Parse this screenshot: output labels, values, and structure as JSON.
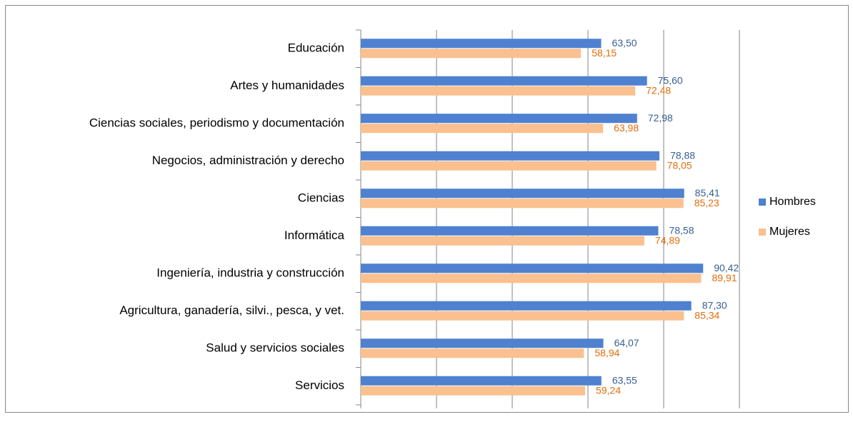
{
  "chart_data": {
    "type": "barh",
    "categories": [
      "Educación",
      "Artes y humanidades",
      "Ciencias sociales, periodismo y documentación",
      "Negocios, administración y derecho",
      "Ciencias",
      "Informática",
      "Ingeniería, industria y construcción",
      "Agricultura, ganadería,  silvi., pesca, y vet.",
      "Salud y servicios sociales",
      "Servicios"
    ],
    "series": [
      {
        "name": "Hombres",
        "color": "#4f81d0",
        "label_color": "#376092",
        "values": [
          63.5,
          75.6,
          72.98,
          78.88,
          85.41,
          78.58,
          90.42,
          87.3,
          64.07,
          63.55
        ],
        "value_labels": [
          "63,50",
          "75,60",
          "72,98",
          "78,88",
          "85,41",
          "78,58",
          "90,42",
          "87,30",
          "64,07",
          "63,55"
        ]
      },
      {
        "name": "Mujeres",
        "color": "#fac08f",
        "label_color": "#e46c0a",
        "values": [
          58.15,
          72.48,
          63.98,
          78.05,
          85.23,
          74.89,
          89.91,
          85.34,
          58.94,
          59.24
        ],
        "value_labels": [
          "58,15",
          "72,48",
          "63,98",
          "78,05",
          "85,23",
          "74,89",
          "89,91",
          "85,34",
          "58,94",
          "59,24"
        ]
      }
    ],
    "xlim": [
      0,
      100
    ],
    "xticks": [
      0,
      20,
      40,
      60,
      80,
      100
    ],
    "grid": true,
    "legend": "right"
  }
}
